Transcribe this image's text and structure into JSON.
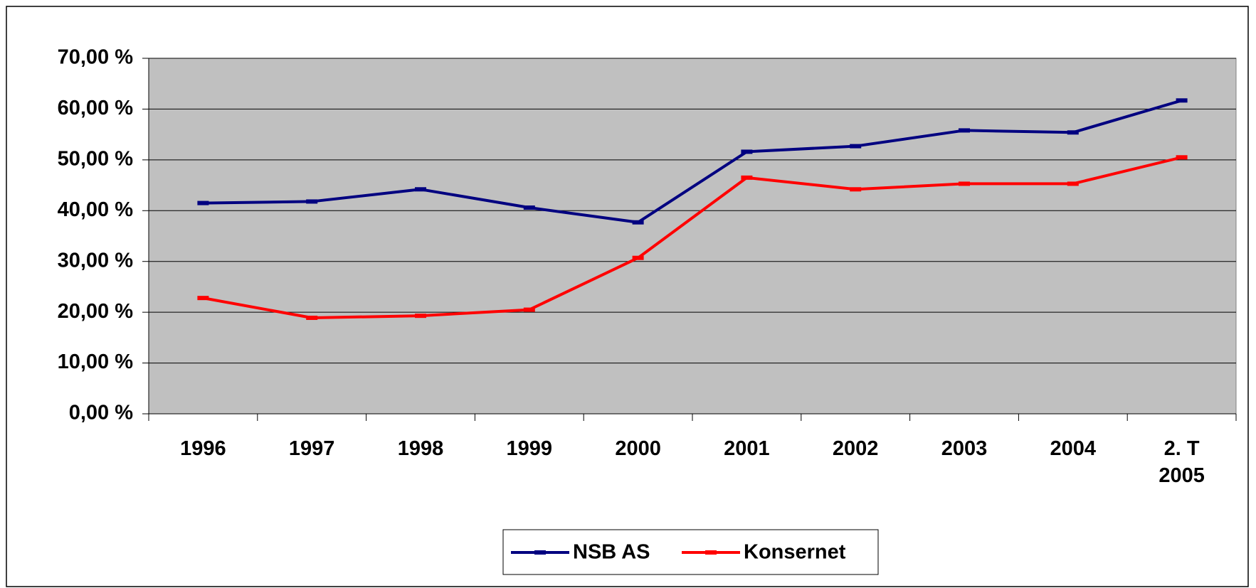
{
  "chart_data": {
    "type": "line",
    "categories": [
      "1996",
      "1997",
      "1998",
      "1999",
      "2000",
      "2001",
      "2002",
      "2003",
      "2004",
      "2. T 2005"
    ],
    "series": [
      {
        "name": "NSB AS",
        "color": "#000080",
        "values": [
          41.5,
          41.8,
          44.2,
          40.6,
          37.7,
          51.6,
          52.7,
          55.8,
          55.4,
          61.7
        ]
      },
      {
        "name": "Konsernet",
        "color": "#ff0000",
        "values": [
          22.8,
          18.9,
          19.3,
          20.5,
          30.7,
          46.5,
          44.2,
          45.3,
          45.3,
          50.5
        ]
      }
    ],
    "ylim": [
      0,
      70
    ],
    "yticks": [
      {
        "value": 0,
        "label": "0,00 %"
      },
      {
        "value": 10,
        "label": "10,00 %"
      },
      {
        "value": 20,
        "label": "20,00 %"
      },
      {
        "value": 30,
        "label": "30,00 %"
      },
      {
        "value": 40,
        "label": "40,00 %"
      },
      {
        "value": 50,
        "label": "50,00 %"
      },
      {
        "value": 60,
        "label": "60,00 %"
      },
      {
        "value": 70,
        "label": "70,00 %"
      }
    ],
    "grid": true,
    "plot_background": "#c0c0c0",
    "legend": "bottom"
  }
}
